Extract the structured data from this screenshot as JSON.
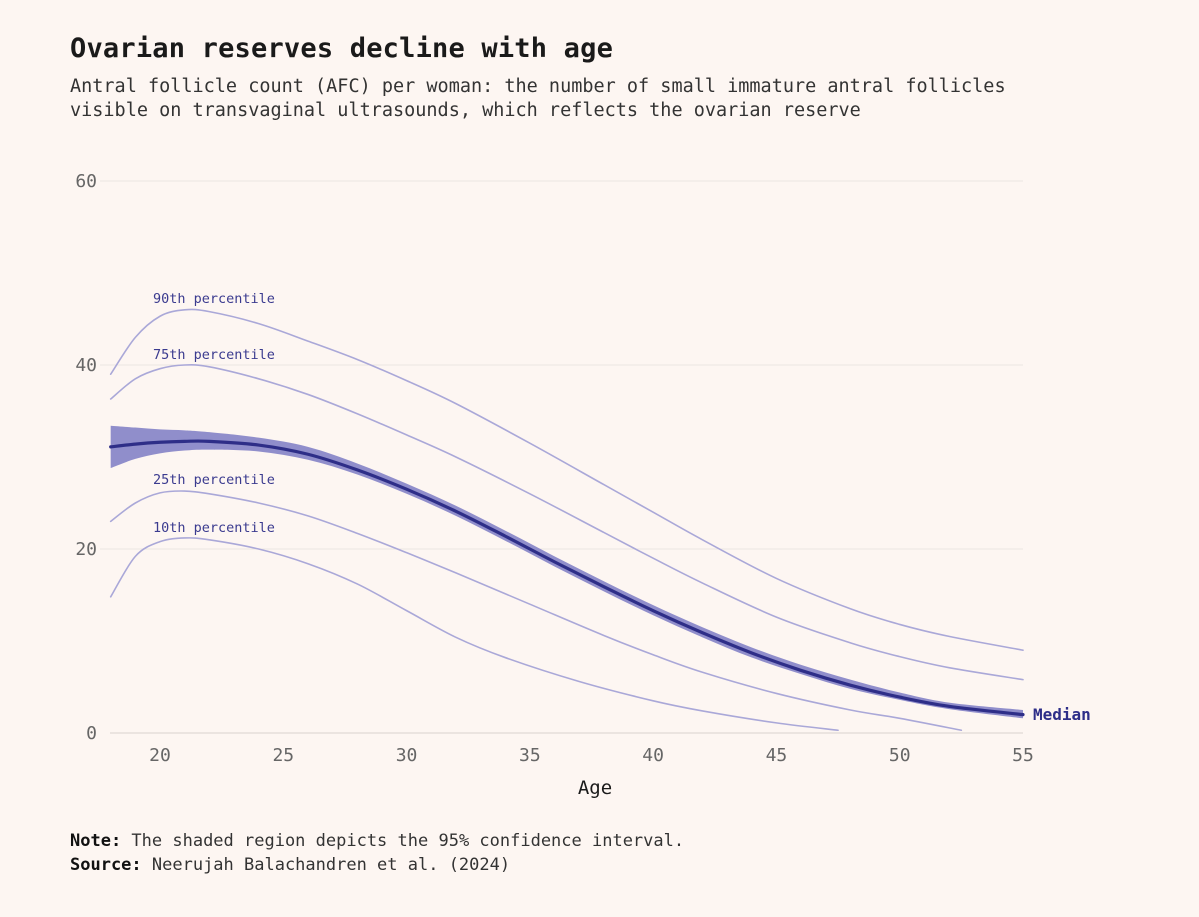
{
  "header": {
    "title": "Ovarian reserves decline with age",
    "subtitle_line1": "Antral follicle count (AFC) per woman: the number of small immature antral follicles",
    "subtitle_line2": "visible on transvaginal ultrasounds, which reflects the ovarian reserve"
  },
  "footer": {
    "note_label": "Note:",
    "note_text": " The shaded region depicts the 95% confidence interval.",
    "source_label": "Source:",
    "source_text": " Neerujah Balachandren et al. (2024)"
  },
  "colors": {
    "background": "#fdf6f2",
    "median": "#2e2e88",
    "ci_band": "#8a88c8",
    "percentile_lines": "#aaa8d8",
    "gridline": "#ece6e3"
  },
  "chart_data": {
    "type": "line",
    "title": "Ovarian reserves decline with age",
    "xlabel": "Age",
    "ylabel": "",
    "xlim": [
      18,
      55
    ],
    "ylim": [
      0,
      60
    ],
    "xticks": [
      20,
      25,
      30,
      35,
      40,
      45,
      50,
      55
    ],
    "yticks": [
      0,
      20,
      40,
      60
    ],
    "grid": true,
    "series": [
      {
        "name": "90th percentile",
        "style": "thin",
        "x": [
          18,
          19,
          20,
          21,
          22,
          24,
          26,
          28,
          30,
          32,
          35,
          38,
          40,
          42,
          45,
          48,
          50,
          52,
          55
        ],
        "y": [
          39,
          43,
          45.3,
          46,
          45.8,
          44.5,
          42.6,
          40.6,
          38.3,
          35.8,
          31.5,
          27,
          24,
          21,
          16.8,
          13.5,
          11.8,
          10.5,
          9
        ]
      },
      {
        "name": "75th percentile",
        "style": "thin",
        "x": [
          18,
          19,
          20,
          21,
          22,
          24,
          26,
          28,
          30,
          32,
          35,
          38,
          40,
          42,
          45,
          48,
          50,
          52,
          55
        ],
        "y": [
          36.3,
          38.5,
          39.6,
          40,
          39.8,
          38.5,
          36.8,
          34.7,
          32.4,
          30,
          26,
          21.8,
          19,
          16.3,
          12.6,
          9.8,
          8.3,
          7.1,
          5.8
        ]
      },
      {
        "name": "25th percentile",
        "style": "thin",
        "x": [
          18,
          19,
          20,
          21,
          22,
          24,
          26,
          28,
          30,
          32,
          35,
          38,
          40,
          42,
          45,
          48,
          50,
          52.5
        ],
        "y": [
          23,
          25,
          26.1,
          26.3,
          26,
          25,
          23.6,
          21.7,
          19.6,
          17.4,
          14,
          10.6,
          8.5,
          6.6,
          4.3,
          2.5,
          1.6,
          0.3
        ]
      },
      {
        "name": "10th percentile",
        "style": "thin",
        "x": [
          18,
          19,
          20,
          21,
          22,
          24,
          26,
          28,
          30,
          32,
          34,
          37,
          40,
          42,
          45,
          47.5
        ],
        "y": [
          14.8,
          19.2,
          20.8,
          21.2,
          21,
          20,
          18.4,
          16.2,
          13.3,
          10.4,
          8.2,
          5.6,
          3.5,
          2.4,
          1.1,
          0.3
        ]
      },
      {
        "name": "Median",
        "style": "thick",
        "x": [
          18,
          19,
          20,
          21,
          22,
          24,
          26,
          28,
          30,
          32,
          34,
          36,
          38,
          40,
          42,
          44,
          46,
          48,
          50,
          52,
          55
        ],
        "y": [
          31.1,
          31.4,
          31.6,
          31.7,
          31.7,
          31.3,
          30.3,
          28.6,
          26.5,
          24.1,
          21.4,
          18.6,
          15.9,
          13.3,
          10.9,
          8.7,
          6.8,
          5.2,
          3.9,
          2.9,
          2
        ],
        "ci_lower": [
          28.8,
          29.8,
          30.4,
          30.7,
          30.8,
          30.6,
          29.7,
          28.1,
          26,
          23.6,
          20.9,
          18.1,
          15.4,
          12.8,
          10.4,
          8.2,
          6.4,
          4.8,
          3.6,
          2.6,
          1.6
        ],
        "ci_upper": [
          33.4,
          33.2,
          33,
          32.9,
          32.7,
          32.1,
          31.1,
          29.3,
          27.1,
          24.7,
          22,
          19.2,
          16.5,
          13.9,
          11.5,
          9.3,
          7.4,
          5.8,
          4.4,
          3.3,
          2.5
        ]
      }
    ],
    "labels": {
      "p90": "90th percentile",
      "p75": "75th percentile",
      "p25": "25th percentile",
      "p10": "10th percentile",
      "median": "Median"
    }
  }
}
